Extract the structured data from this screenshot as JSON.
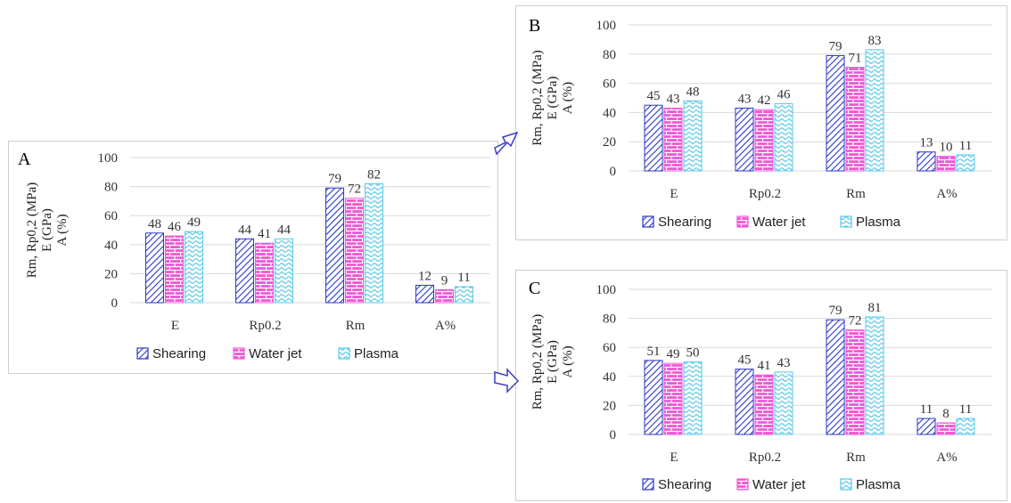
{
  "colors": {
    "shearing": "#2b36c9",
    "water_jet": "#ee59d6",
    "plasma": "#58c9e8",
    "grid": "#d9d9d9",
    "arrow": "#3a3fc8"
  },
  "chart_data": [
    {
      "type": "bar",
      "panel_label": "A",
      "categories": [
        "E",
        "Rp0.2",
        "Rm",
        "A%"
      ],
      "series": [
        {
          "name": "Shearing",
          "values": [
            48,
            44,
            79,
            12
          ]
        },
        {
          "name": "Water jet",
          "values": [
            46,
            41,
            72,
            9
          ]
        },
        {
          "name": "Plasma",
          "values": [
            49,
            44,
            82,
            11
          ]
        }
      ],
      "ylabel_lines": [
        "Rm, Rp0,2 (MPa)",
        "E (GPa)",
        "A (%)"
      ],
      "yticks": [
        "0",
        "20",
        "40",
        "60",
        "80",
        "100"
      ],
      "ylim": [
        0,
        100
      ],
      "legend_position": "bottom"
    },
    {
      "type": "bar",
      "panel_label": "B",
      "categories": [
        "E",
        "Rp0.2",
        "Rm",
        "A%"
      ],
      "series": [
        {
          "name": "Shearing",
          "values": [
            45,
            43,
            79,
            13
          ]
        },
        {
          "name": "Water jet",
          "values": [
            43,
            42,
            71,
            10
          ]
        },
        {
          "name": "Plasma",
          "values": [
            48,
            46,
            83,
            11
          ]
        }
      ],
      "ylabel_lines": [
        "Rm, Rp0,2 (MPa)",
        "E (GPa)",
        "A (%)"
      ],
      "yticks": [
        "0",
        "20",
        "40",
        "60",
        "80",
        "100"
      ],
      "ylim": [
        0,
        100
      ],
      "legend_position": "bottom"
    },
    {
      "type": "bar",
      "panel_label": "C",
      "categories": [
        "E",
        "Rp0.2",
        "Rm",
        "A%"
      ],
      "series": [
        {
          "name": "Shearing",
          "values": [
            51,
            45,
            79,
            11
          ]
        },
        {
          "name": "Water jet",
          "values": [
            49,
            41,
            72,
            8
          ]
        },
        {
          "name": "Plasma",
          "values": [
            50,
            43,
            81,
            11
          ]
        }
      ],
      "ylabel_lines": [
        "Rm, Rp0,2 (MPa)",
        "E (GPa)",
        "A (%)"
      ],
      "yticks": [
        "0",
        "20",
        "40",
        "60",
        "80",
        "100"
      ],
      "ylim": [
        0,
        100
      ],
      "legend_position": "bottom"
    }
  ]
}
